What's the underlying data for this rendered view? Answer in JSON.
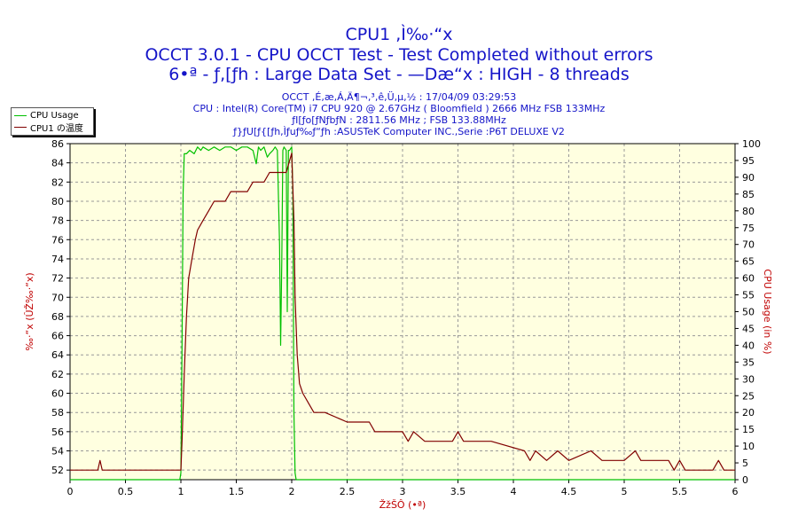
{
  "header": {
    "title1": "CPU1 ,Ì‰·“x",
    "title2": "OCCT 3.0.1 - CPU OCCT Test - Test Completed without errors",
    "title3": "6•ª - ƒ,[ƒh : Large Data Set - —Dæ“x : HIGH - 8 threads",
    "info1": "OCCT ,É,æ,Á,Ä¶¬,³,ê,Ü,µ,½ : 17/04/09 03:29:53",
    "info2": "CPU : Intel(R) Core(TM) i7 CPU 920 @ 2.67GHz ( Bloomfield ) 2666 MHz FSB 133MHz",
    "info3": "ƒI[ƒo[ƒNƒbƒN : 2811.56 MHz ; FSB 133.88MHz",
    "info4": "ƒ}ƒU[ƒ{[ƒh,Ìƒuƒ‰ƒ“ƒh :ASUSTeK Computer INC.,Serie :P6T DELUXE V2"
  },
  "legend": {
    "items": [
      {
        "label": "CPU Usage",
        "color": "#00c000"
      },
      {
        "label": "CPU1 の温度",
        "color": "#800000"
      }
    ]
  },
  "chart_data": {
    "type": "line",
    "title": "CPU1 ,Ì‰·“x",
    "xlabel": "ŽžŠÔ (•ª)",
    "ylabel_left": "‰·“x (ÛŽ‰·“x)",
    "ylabel_right": "CPU Usage (in %)",
    "xlim": [
      0,
      6
    ],
    "ylim_left": [
      51,
      86
    ],
    "ylim_right": [
      0,
      100
    ],
    "xticks": [
      0,
      0.5,
      1,
      1.5,
      2,
      2.5,
      3,
      3.5,
      4,
      4.5,
      5,
      5.5,
      6
    ],
    "yticks_left": [
      52,
      54,
      56,
      58,
      60,
      62,
      64,
      66,
      68,
      70,
      72,
      74,
      76,
      78,
      80,
      82,
      84,
      86
    ],
    "yticks_right": [
      0,
      5,
      10,
      15,
      20,
      25,
      30,
      35,
      40,
      45,
      50,
      55,
      60,
      65,
      70,
      75,
      80,
      85,
      90,
      95,
      100
    ],
    "grid": true,
    "legend_position": "top-left",
    "series": [
      {
        "name": "CPU Usage",
        "axis": "right",
        "color": "#00c000",
        "x": [
          0.0,
          0.99,
          1.0,
          1.01,
          1.02,
          1.03,
          1.05,
          1.08,
          1.12,
          1.15,
          1.18,
          1.2,
          1.25,
          1.3,
          1.35,
          1.4,
          1.45,
          1.5,
          1.55,
          1.6,
          1.65,
          1.68,
          1.7,
          1.72,
          1.75,
          1.78,
          1.8,
          1.83,
          1.85,
          1.87,
          1.89,
          1.9,
          1.91,
          1.92,
          1.93,
          1.95,
          1.96,
          1.97,
          1.98,
          2.0,
          2.01,
          2.02,
          2.03,
          2.04,
          2.05,
          6.0
        ],
        "y": [
          0,
          0,
          2,
          40,
          85,
          97,
          97,
          98,
          97,
          99,
          98,
          99,
          98,
          99,
          98,
          99,
          99,
          98,
          99,
          99,
          98,
          94,
          99,
          98,
          99,
          96,
          97,
          98,
          99,
          98,
          70,
          40,
          65,
          98,
          99,
          98,
          50,
          98,
          98,
          99,
          85,
          20,
          2,
          0,
          0,
          0
        ]
      },
      {
        "name": "CPU1 の温度",
        "axis": "left",
        "color": "#800000",
        "x": [
          0.0,
          0.25,
          0.27,
          0.29,
          0.31,
          1.0,
          1.01,
          1.03,
          1.05,
          1.07,
          1.1,
          1.13,
          1.15,
          1.2,
          1.25,
          1.3,
          1.33,
          1.4,
          1.45,
          1.5,
          1.55,
          1.6,
          1.65,
          1.7,
          1.75,
          1.8,
          1.85,
          1.9,
          1.95,
          2.0,
          2.02,
          2.03,
          2.05,
          2.07,
          2.1,
          2.15,
          2.2,
          2.3,
          2.5,
          2.6,
          2.7,
          2.75,
          2.9,
          3.0,
          3.05,
          3.1,
          3.2,
          3.45,
          3.5,
          3.55,
          3.6,
          3.8,
          4.1,
          4.15,
          4.2,
          4.3,
          4.4,
          4.5,
          4.7,
          4.8,
          5.0,
          5.1,
          5.15,
          5.2,
          5.4,
          5.45,
          5.5,
          5.55,
          5.6,
          5.8,
          5.85,
          5.9,
          6.0
        ],
        "y": [
          52,
          52,
          53,
          52,
          52,
          52,
          55,
          62,
          68,
          72,
          74,
          76,
          77,
          78,
          79,
          80,
          80,
          80,
          81,
          81,
          81,
          81,
          82,
          82,
          82,
          83,
          83,
          83,
          83,
          85,
          78,
          70,
          64,
          61,
          60,
          59,
          58,
          58,
          57,
          57,
          57,
          56,
          56,
          56,
          55,
          56,
          55,
          55,
          56,
          55,
          55,
          55,
          54,
          53,
          54,
          53,
          54,
          53,
          54,
          53,
          53,
          54,
          53,
          53,
          53,
          52,
          53,
          52,
          52,
          52,
          53,
          52,
          52
        ]
      }
    ]
  }
}
